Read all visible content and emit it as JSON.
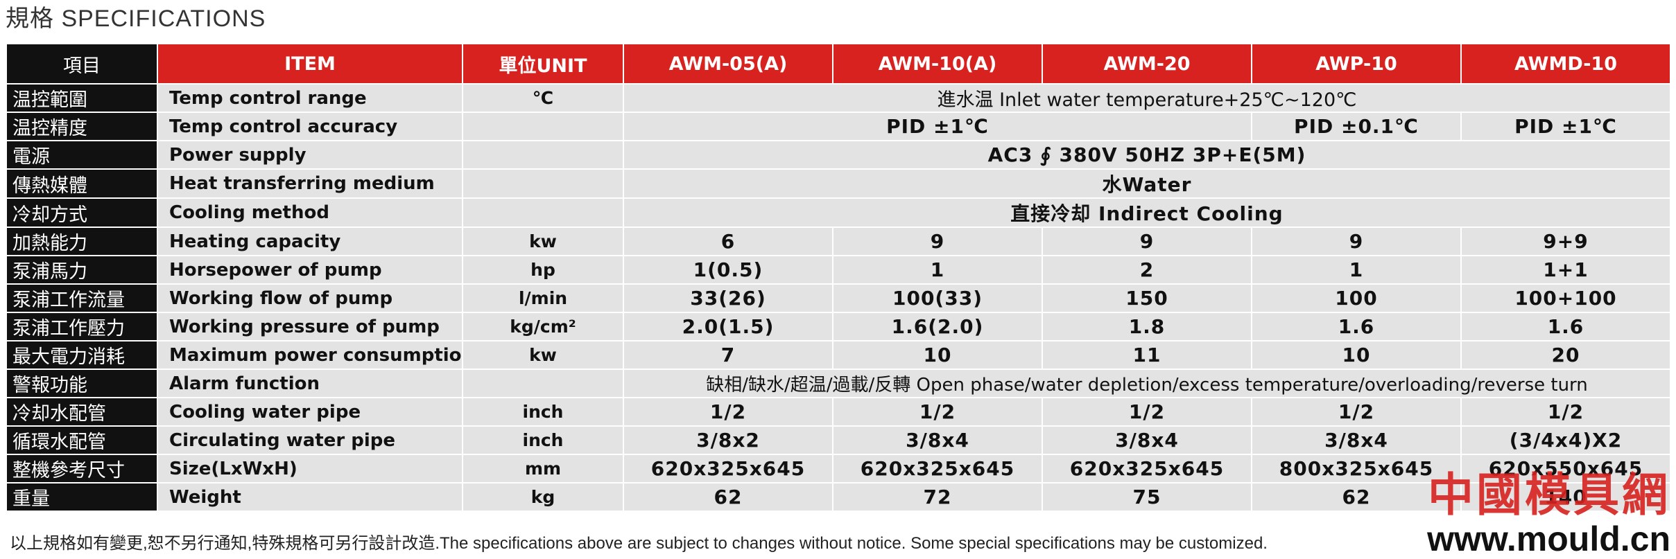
{
  "title": "規格 SPECIFICATIONS",
  "headers": {
    "item_cn": "項目",
    "item_en": "ITEM",
    "unit": "單位UNIT",
    "models": [
      "AWM-05(A)",
      "AWM-10(A)",
      "AWM-20",
      "AWP-10",
      "AWMD-10"
    ]
  },
  "rows": {
    "temp_range": {
      "cn": "温控範圍",
      "en": "Temp control range",
      "unit": "℃",
      "value": "進水温 Inlet water  temperature+25℃~120℃"
    },
    "temp_accuracy": {
      "cn": "温控精度",
      "en": "Temp control accuracy",
      "unit": "",
      "value_awm": "PID ±1℃",
      "value_awp": "PID ±0.1℃",
      "value_awmd": "PID ±1℃"
    },
    "power_supply": {
      "cn": "電源",
      "en": "Power supply",
      "unit": "",
      "value": "AC3 ∮ 380V 50HZ 3P+E(5M)"
    },
    "medium": {
      "cn": "傳熱媒體",
      "en": "Heat transferring  medium",
      "unit": "",
      "value": "水Water"
    },
    "cooling_method": {
      "cn": "冷却方式",
      "en": "Cooling method",
      "unit": "",
      "value": "直接冷却 Indirect Cooling"
    },
    "heating": {
      "cn": "加熱能力",
      "en": "Heating capacity",
      "unit": "kw",
      "values": [
        "6",
        "9",
        "9",
        "9",
        "9+9"
      ]
    },
    "horsepower": {
      "cn": "泵浦馬力",
      "en": "Horsepower of pump",
      "unit": "hp",
      "values": [
        "1(0.5)",
        "1",
        "2",
        "1",
        "1+1"
      ]
    },
    "flow": {
      "cn": "泵浦工作流量",
      "en": "Working flow of pump",
      "unit": "l/min",
      "values": [
        "33(26)",
        "100(33)",
        "150",
        "100",
        "100+100"
      ]
    },
    "pressure": {
      "cn": "泵浦工作壓力",
      "en": "Working pressure of pump",
      "unit": "kg/cm²",
      "values": [
        "2.0(1.5)",
        "1.6(2.0)",
        "1.8",
        "1.6",
        "1.6"
      ]
    },
    "max_power": {
      "cn": "最大電力消耗",
      "en": "Maximum power consumption",
      "unit": "kw",
      "values": [
        "7",
        "10",
        "11",
        "10",
        "20"
      ]
    },
    "alarm": {
      "cn": "警報功能",
      "en": "Alarm function",
      "unit": "",
      "value": "缺相/缺水/超温/過載/反轉 Open phase/water depletion/excess temperature/overloading/reverse turn"
    },
    "cooling_pipe": {
      "cn": "冷却水配管",
      "en": "Cooling water pipe",
      "unit": "inch",
      "values": [
        "1/2",
        "1/2",
        "1/2",
        "1/2",
        "1/2"
      ]
    },
    "circ_pipe": {
      "cn": "循環水配管",
      "en": "Circulating water  pipe",
      "unit": "inch",
      "values": [
        "3/8x2",
        "3/8x4",
        "3/8x4",
        "3/8x4",
        "(3/4x4)X2"
      ]
    },
    "size": {
      "cn": "整機參考尺寸",
      "en": "Size(LxWxH)",
      "unit": "mm",
      "values": [
        "620x325x645",
        "620x325x645",
        "620x325x645",
        "800x325x645",
        "620x550x645"
      ]
    },
    "weight": {
      "cn": "重量",
      "en": "Weight",
      "unit": "kg",
      "values": [
        "62",
        "72",
        "75",
        "62",
        "140"
      ]
    }
  },
  "footnote": "以上規格如有變更,恕不另行通知,特殊規格可另行設計改造.The specifications above are subject to changes without notice. Some special specifications may be customized.",
  "watermark": {
    "cn": "中國模具網",
    "url": "www.mould.cn"
  },
  "colors": {
    "header_red": "#d7221f",
    "label_black": "#111111",
    "row_gray": "#e3e3e3",
    "watermark_red": "#d7221f"
  }
}
